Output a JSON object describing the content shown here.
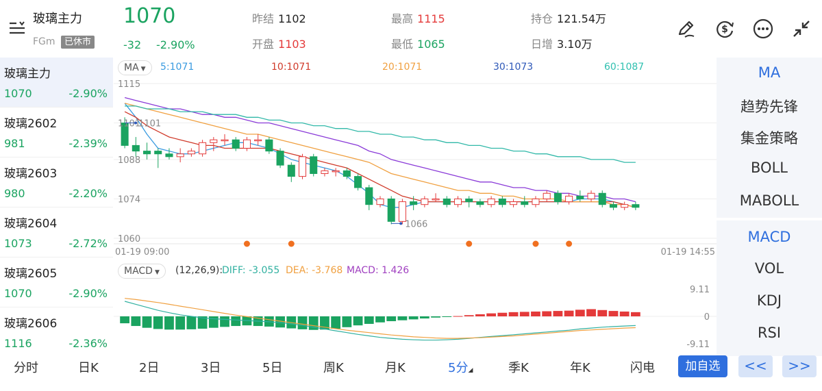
{
  "header": {
    "title": "玻璃主力",
    "code": "FGm",
    "status": "已休市",
    "price": "1070",
    "change": "-32",
    "change_pct": "-2.90%",
    "stats": [
      {
        "label": "昨结",
        "value": "1102",
        "color": "#222222"
      },
      {
        "label": "开盘",
        "value": "1103",
        "color": "#e43a3a"
      },
      {
        "label": "最高",
        "value": "1115",
        "color": "#e43a3a"
      },
      {
        "label": "最低",
        "value": "1065",
        "color": "#1aa360"
      },
      {
        "label": "持仓",
        "value": "121.54万",
        "color": "#222222"
      },
      {
        "label": "日增",
        "value": "3.10万",
        "color": "#222222"
      }
    ],
    "icons": [
      "menu-icon",
      "draw-pen-icon",
      "currency-icon",
      "more-icon",
      "collapse-icon"
    ]
  },
  "contracts": [
    {
      "name": "玻璃主力",
      "price": "1070",
      "pct": "-2.90%"
    },
    {
      "name": "玻璃2602",
      "price": "981",
      "pct": "-2.39%"
    },
    {
      "name": "玻璃2603",
      "price": "980",
      "pct": "-2.20%"
    },
    {
      "name": "玻璃2604",
      "price": "1073",
      "pct": "-2.72%"
    },
    {
      "name": "玻璃2605",
      "price": "1070",
      "pct": "-2.90%"
    },
    {
      "name": "玻璃2606",
      "price": "1116",
      "pct": "-2.36%"
    }
  ],
  "ma_legend": {
    "selector": "MA",
    "items": [
      {
        "text": "5:1071",
        "color": "#3a9be0"
      },
      {
        "text": "10:1071",
        "color": "#d03a2a"
      },
      {
        "text": "20:1071",
        "color": "#f0a040"
      },
      {
        "text": "30:1073",
        "color": "#2e58b8"
      },
      {
        "text": "60:1087",
        "color": "#30c0b0"
      }
    ]
  },
  "macd_legend": {
    "selector": "MACD",
    "params": "(12,26,9):",
    "diff": "DIFF: -3.055",
    "dea": "DEA: -3.768",
    "macd": "MACD: 1.426"
  },
  "chart_data": [
    {
      "type": "candlestick",
      "y_ticks": [
        "1115",
        "1101",
        "1088",
        "1074",
        "1060"
      ],
      "ylim": [
        1060,
        1115
      ],
      "x_start_label": "01-19 09:00",
      "x_end_label": "01-19 14:55",
      "high_marker": "1101",
      "low_marker": "1066",
      "candles": [
        [
          1101,
          1093,
          1103,
          1092
        ],
        [
          1093,
          1091,
          1096,
          1089
        ],
        [
          1091,
          1090,
          1094,
          1088
        ],
        [
          1091,
          1090,
          1092,
          1085
        ],
        [
          1090,
          1089,
          1092,
          1088
        ],
        [
          1089,
          1090,
          1092,
          1087
        ],
        [
          1090,
          1091,
          1092,
          1089
        ],
        [
          1090,
          1094,
          1095,
          1089
        ],
        [
          1094,
          1095,
          1096,
          1091
        ],
        [
          1095,
          1095,
          1097,
          1093
        ],
        [
          1095,
          1092,
          1096,
          1091
        ],
        [
          1092,
          1095,
          1096,
          1091
        ],
        [
          1095,
          1095,
          1097,
          1093
        ],
        [
          1095,
          1091,
          1096,
          1090
        ],
        [
          1091,
          1086,
          1092,
          1085
        ],
        [
          1086,
          1082,
          1087,
          1080
        ],
        [
          1082,
          1089,
          1090,
          1081
        ],
        [
          1089,
          1083,
          1090,
          1082
        ],
        [
          1083,
          1084,
          1085,
          1082
        ],
        [
          1084,
          1084,
          1085,
          1082
        ],
        [
          1084,
          1082,
          1085,
          1081
        ],
        [
          1082,
          1078,
          1083,
          1077
        ],
        [
          1078,
          1072,
          1079,
          1070
        ],
        [
          1072,
          1074,
          1075,
          1071
        ],
        [
          1074,
          1066,
          1075,
          1065
        ],
        [
          1066,
          1073,
          1074,
          1065
        ],
        [
          1073,
          1072,
          1075,
          1070
        ],
        [
          1072,
          1074,
          1075,
          1071
        ],
        [
          1074,
          1074,
          1076,
          1073
        ],
        [
          1074,
          1072,
          1075,
          1071
        ],
        [
          1072,
          1074,
          1075,
          1071
        ],
        [
          1074,
          1073,
          1075,
          1071
        ],
        [
          1073,
          1072,
          1074,
          1071
        ],
        [
          1072,
          1074,
          1075,
          1071
        ],
        [
          1074,
          1072,
          1075,
          1071
        ],
        [
          1072,
          1073,
          1074,
          1071
        ],
        [
          1073,
          1072,
          1075,
          1071
        ],
        [
          1072,
          1074,
          1075,
          1071
        ],
        [
          1074,
          1076,
          1077,
          1073
        ],
        [
          1076,
          1073,
          1077,
          1072
        ],
        [
          1073,
          1075,
          1076,
          1072
        ],
        [
          1075,
          1074,
          1077,
          1073
        ],
        [
          1074,
          1076,
          1077,
          1073
        ],
        [
          1076,
          1072,
          1077,
          1071
        ],
        [
          1072,
          1071,
          1073,
          1070
        ],
        [
          1071,
          1072,
          1073,
          1070
        ],
        [
          1072,
          1071,
          1073,
          1070
        ]
      ],
      "ma": {
        "5": [
          1108,
          1103,
          1097,
          1092,
          1091,
          1090,
          1090,
          1091,
          1092,
          1093,
          1094,
          1094,
          1093,
          1092,
          1090,
          1088,
          1087,
          1086,
          1085,
          1084,
          1082,
          1079,
          1076,
          1072,
          1071,
          1071,
          1072,
          1073,
          1073,
          1073,
          1073,
          1073,
          1073,
          1073,
          1073,
          1073,
          1073,
          1073,
          1073,
          1073,
          1073,
          1074,
          1074,
          1074,
          1073,
          1072,
          1071
        ],
        "10": [
          1105,
          1103,
          1100,
          1098,
          1096,
          1095,
          1094,
          1093,
          1093,
          1092,
          1092,
          1092,
          1092,
          1092,
          1091,
          1090,
          1089,
          1088,
          1087,
          1086,
          1085,
          1083,
          1081,
          1079,
          1077,
          1075,
          1074,
          1073,
          1073,
          1073,
          1073,
          1073,
          1073,
          1073,
          1073,
          1073,
          1073,
          1073,
          1073,
          1073,
          1073,
          1073,
          1073,
          1073,
          1073,
          1072,
          1071
        ],
        "20": [
          1108,
          1107,
          1106,
          1105,
          1104,
          1103,
          1102,
          1101,
          1100,
          1099,
          1098,
          1097,
          1097,
          1096,
          1095,
          1094,
          1093,
          1092,
          1091,
          1090,
          1089,
          1088,
          1087,
          1085,
          1083,
          1082,
          1081,
          1080,
          1079,
          1078,
          1077,
          1077,
          1076,
          1076,
          1075,
          1075,
          1074,
          1074,
          1074,
          1074,
          1073,
          1073,
          1073,
          1073,
          1072,
          1072,
          1071
        ],
        "30": [
          1110,
          1109,
          1108,
          1107,
          1106,
          1106,
          1105,
          1104,
          1104,
          1103,
          1103,
          1102,
          1101,
          1101,
          1100,
          1099,
          1098,
          1097,
          1096,
          1095,
          1094,
          1093,
          1091,
          1090,
          1088,
          1087,
          1086,
          1085,
          1084,
          1083,
          1082,
          1081,
          1080,
          1080,
          1079,
          1078,
          1078,
          1077,
          1077,
          1076,
          1076,
          1075,
          1075,
          1075,
          1074,
          1074,
          1073
        ],
        "60": [
          1107,
          1107,
          1106,
          1106,
          1106,
          1105,
          1105,
          1105,
          1104,
          1104,
          1104,
          1103,
          1103,
          1102,
          1102,
          1101,
          1101,
          1100,
          1100,
          1099,
          1099,
          1098,
          1098,
          1097,
          1097,
          1096,
          1096,
          1095,
          1095,
          1094,
          1094,
          1093,
          1093,
          1092,
          1092,
          1091,
          1091,
          1090,
          1090,
          1089,
          1089,
          1089,
          1088,
          1088,
          1088,
          1087,
          1087
        ]
      },
      "signals": [
        11,
        15,
        31,
        37,
        40
      ]
    },
    {
      "type": "macd",
      "y_ticks": [
        "9.11",
        "0",
        "-9.11"
      ],
      "ylim": [
        -9.11,
        9.11
      ],
      "histogram": [
        -2.3,
        -3.2,
        -3.8,
        -4.2,
        -4.4,
        -4.4,
        -4.3,
        -4.1,
        -3.8,
        -3.5,
        -3.2,
        -3.0,
        -3.2,
        -3.4,
        -3.7,
        -4.0,
        -4.3,
        -4.5,
        -4.4,
        -4.1,
        -3.6,
        -3.0,
        -2.5,
        -2.0,
        -1.6,
        -1.3,
        -1.0,
        -0.7,
        -0.4,
        -0.2,
        0.1,
        0.4,
        0.7,
        1.0,
        1.2,
        1.4,
        1.5,
        1.6,
        1.7,
        1.8,
        1.9,
        2.2,
        2.4,
        2.1,
        1.8,
        1.6,
        1.4
      ],
      "diff": [
        5.0,
        4.0,
        3.0,
        2.0,
        1.2,
        0.5,
        0.0,
        -0.5,
        -0.8,
        -1.0,
        -1.2,
        -1.4,
        -1.6,
        -1.8,
        -2.1,
        -2.5,
        -3.0,
        -3.6,
        -4.2,
        -4.8,
        -5.4,
        -6.0,
        -6.5,
        -7.0,
        -7.3,
        -7.6,
        -7.8,
        -7.9,
        -7.9,
        -7.8,
        -7.6,
        -7.3,
        -7.0,
        -6.7,
        -6.4,
        -6.1,
        -5.8,
        -5.5,
        -5.2,
        -4.9,
        -4.6,
        -4.2,
        -3.9,
        -3.6,
        -3.4,
        -3.2,
        -3.055
      ],
      "dea": [
        6.0,
        5.6,
        5.1,
        4.6,
        4.0,
        3.4,
        2.8,
        2.2,
        1.6,
        1.0,
        0.4,
        -0.1,
        -0.6,
        -1.1,
        -1.6,
        -2.1,
        -2.6,
        -3.1,
        -3.6,
        -4.1,
        -4.6,
        -5.0,
        -5.4,
        -5.8,
        -6.2,
        -6.5,
        -6.8,
        -7.0,
        -7.2,
        -7.3,
        -7.3,
        -7.2,
        -7.1,
        -6.9,
        -6.7,
        -6.5,
        -6.2,
        -5.9,
        -5.6,
        -5.3,
        -5.0,
        -4.7,
        -4.5,
        -4.3,
        -4.1,
        -3.9,
        -3.768
      ]
    }
  ],
  "indicators_top": [
    "MA",
    "趋势先锋",
    "集金策略",
    "BOLL",
    "MABOLL"
  ],
  "indicators_bottom": [
    "MACD",
    "VOL",
    "KDJ",
    "RSI"
  ],
  "tabs": [
    "分时",
    "日K",
    "2日",
    "3日",
    "5日",
    "周K",
    "月K",
    "5分",
    "季K",
    "年K",
    "闪电"
  ],
  "selected_tab": "5分",
  "actions": {
    "add_favorite": "加自选",
    "prev": "<<",
    "next": ">>"
  },
  "colors": {
    "up": "#e43a3a",
    "down": "#1aa360",
    "accent": "#2f6fde",
    "signal": "#f07020"
  }
}
